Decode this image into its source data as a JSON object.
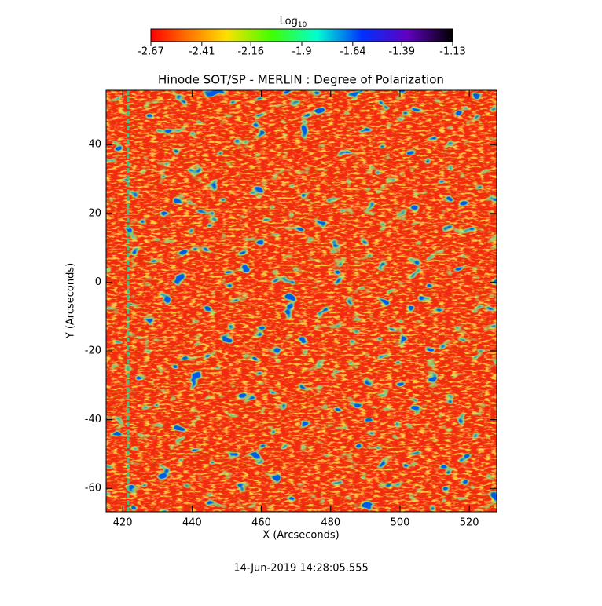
{
  "chart_data": {
    "type": "heatmap",
    "title": "Hinode SOT/SP - MERLIN : Degree of Polarization",
    "xlabel": "X (Arcseconds)",
    "ylabel": "Y (Arcseconds)",
    "xlim": [
      415.2,
      527.9
    ],
    "ylim": [
      -66.8,
      55.8
    ],
    "xticks": [
      420,
      440,
      460,
      480,
      500,
      520
    ],
    "yticks": [
      -60,
      -40,
      -20,
      0,
      20,
      40
    ],
    "colorbar": {
      "label": "Log",
      "label_subscript": "10",
      "lim": [
        -2.67,
        -1.13
      ],
      "ticks": [
        -2.67,
        -2.41,
        -2.16,
        -1.9,
        -1.64,
        -1.39,
        -1.13
      ]
    },
    "footer": "14-Jun-2019 14:28:05.555"
  }
}
